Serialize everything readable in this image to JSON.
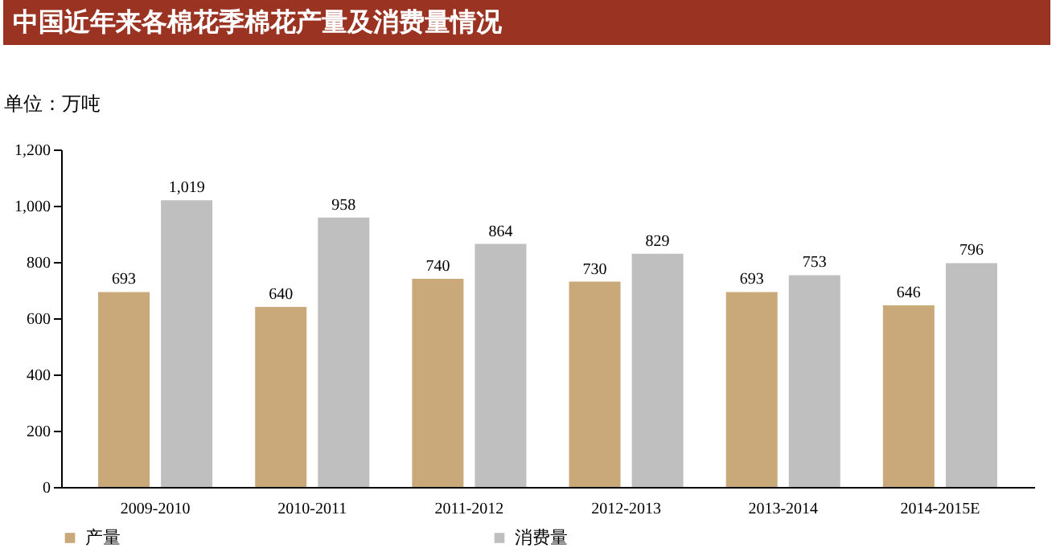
{
  "chart_data": {
    "type": "bar",
    "title": "中国近年来各棉花季棉花产量及消费量情况",
    "ylabel": "单位：万吨",
    "categories": [
      "2009-2010",
      "2010-2011",
      "2011-2012",
      "2012-2013",
      "2013-2014",
      "2014-2015E"
    ],
    "series": [
      {
        "name": "产量",
        "color": "#c9a87a",
        "values": [
          693,
          640,
          740,
          730,
          693,
          646
        ],
        "value_labels": [
          "693",
          "640",
          "740",
          "730",
          "693",
          "646"
        ]
      },
      {
        "name": "消费量",
        "color": "#bfbfbf",
        "values": [
          1019,
          958,
          864,
          829,
          753,
          796
        ],
        "value_labels": [
          "1,019",
          "958",
          "864",
          "829",
          "753",
          "796"
        ]
      }
    ],
    "ylim": [
      0,
      1200
    ],
    "yticks": [
      {
        "value": 0,
        "label": "0"
      },
      {
        "value": 200,
        "label": "200"
      },
      {
        "value": 400,
        "label": "400"
      },
      {
        "value": 600,
        "label": "600"
      },
      {
        "value": 800,
        "label": "800"
      },
      {
        "value": 1000,
        "label": "1,000"
      },
      {
        "value": 1200,
        "label": "1,200"
      }
    ],
    "grid": false,
    "legend": "bottom"
  }
}
